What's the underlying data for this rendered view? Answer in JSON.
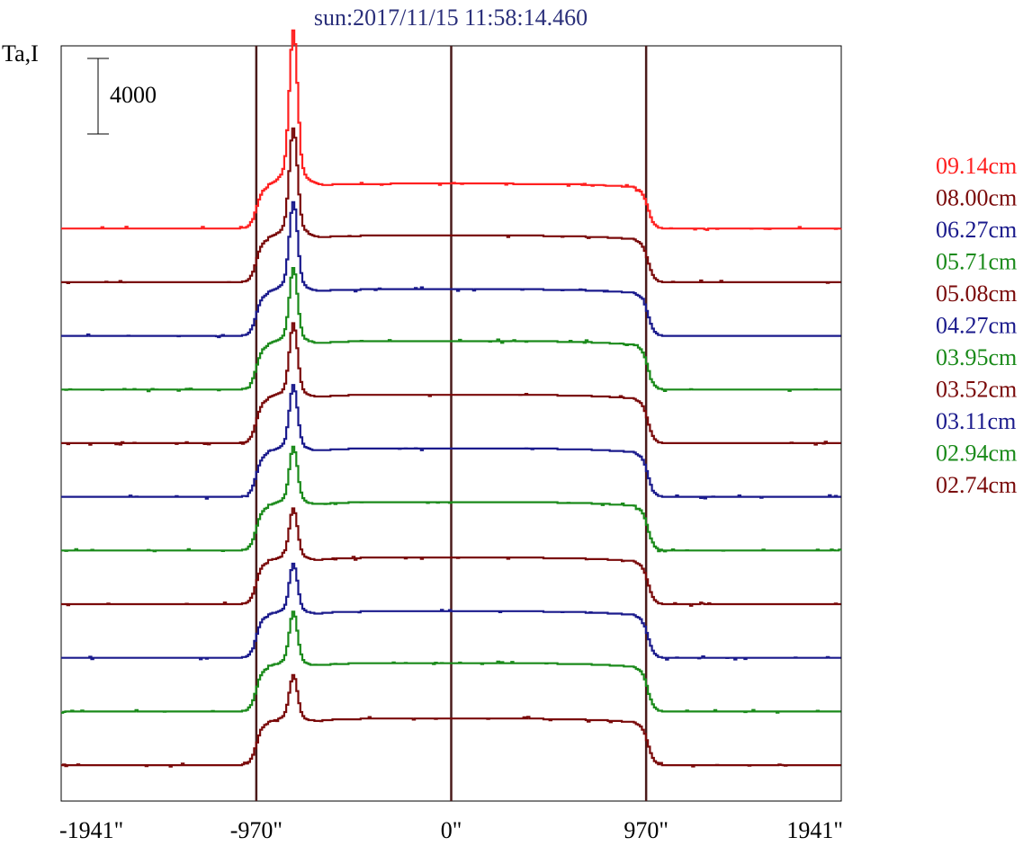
{
  "chart_data": {
    "type": "line",
    "title": "sun:2017/11/15 11:58:14.460",
    "ylabel": "Ta,I",
    "scale_bar": {
      "label": "4000",
      "value": 4000
    },
    "x_ticks": [
      {
        "value": -1941,
        "label": "-1941\""
      },
      {
        "value": -970,
        "label": "-970\""
      },
      {
        "value": 0,
        "label": "0\""
      },
      {
        "value": 970,
        "label": "970\""
      },
      {
        "value": 1941,
        "label": "1941\""
      }
    ],
    "xlim": [
      -1941,
      1941
    ],
    "vertical_lines": [
      -970,
      0,
      970
    ],
    "vertical_line_color": "#4a1a1a",
    "series": [
      {
        "name": "09.14cm",
        "color": "#ff2020",
        "offset": 30000,
        "disk": 2500,
        "peak": 7800
      },
      {
        "name": "08.00cm",
        "color": "#7a0a0a",
        "offset": 27000,
        "disk": 2600,
        "peak": 5500
      },
      {
        "name": "06.27cm",
        "color": "#1a1a8c",
        "offset": 24000,
        "disk": 2600,
        "peak": 4500
      },
      {
        "name": "05.71cm",
        "color": "#1a8a1a",
        "offset": 21000,
        "disk": 2700,
        "peak": 3800
      },
      {
        "name": "05.08cm",
        "color": "#7a0a0a",
        "offset": 18000,
        "disk": 2700,
        "peak": 3700
      },
      {
        "name": "04.27cm",
        "color": "#1a1a8c",
        "offset": 15000,
        "disk": 2700,
        "peak": 3300
      },
      {
        "name": "03.95cm",
        "color": "#1a8a1a",
        "offset": 12000,
        "disk": 2700,
        "peak": 2900
      },
      {
        "name": "03.52cm",
        "color": "#7a0a0a",
        "offset": 9000,
        "disk": 2600,
        "peak": 2600
      },
      {
        "name": "03.11cm",
        "color": "#1a1a8c",
        "offset": 6000,
        "disk": 2600,
        "peak": 2500
      },
      {
        "name": "02.94cm",
        "color": "#1a8a1a",
        "offset": 3000,
        "disk": 2700,
        "peak": 2700
      },
      {
        "name": "02.74cm",
        "color": "#7a0a0a",
        "offset": 0,
        "disk": 2600,
        "peak": 2300
      }
    ],
    "ylim": [
      -1000,
      38000
    ]
  }
}
